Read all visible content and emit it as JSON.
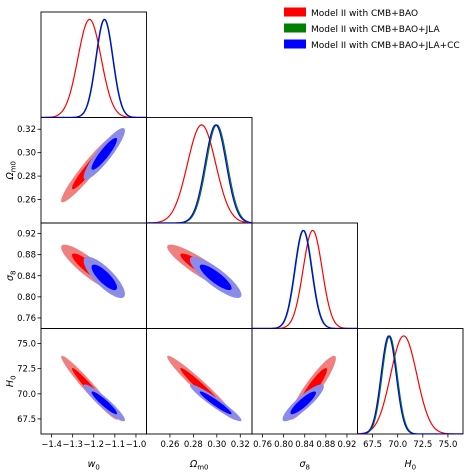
{
  "chart_data": {
    "type": "corner",
    "legend_placement": "top-right",
    "legend": [
      {
        "label": "Model II with CMB+BAO",
        "color": "#ff0000"
      },
      {
        "label": "Model II with CMB+BAO+JLA",
        "color": "#008000"
      },
      {
        "label": "Model II with CMB+BAO+JLA+CC",
        "color": "#0000ff"
      }
    ],
    "parameters": [
      {
        "key": "w0",
        "symbol": "w",
        "subscript": "0",
        "range": [
          -1.45,
          -0.95
        ],
        "ticks": [
          -1.4,
          -1.3,
          -1.2,
          -1.1,
          -1.0
        ],
        "tick_labels": [
          "−1.4",
          "−1.3",
          "−1.2",
          "−1.1",
          "−1.0"
        ]
      },
      {
        "key": "Om0",
        "symbol": "Ω",
        "subscript": "m0",
        "range": [
          0.24,
          0.33
        ],
        "ticks": [
          0.26,
          0.28,
          0.3,
          0.32
        ],
        "tick_labels": [
          "0.26",
          "0.28",
          "0.30",
          "0.32"
        ]
      },
      {
        "key": "s8",
        "symbol": "σ",
        "subscript": "8",
        "range": [
          0.74,
          0.94
        ],
        "ticks": [
          0.76,
          0.8,
          0.84,
          0.88,
          0.92
        ],
        "tick_labels": [
          "0.76",
          "0.80",
          "0.84",
          "0.88",
          "0.92"
        ]
      },
      {
        "key": "H0",
        "symbol": "H",
        "subscript": "0",
        "range": [
          66.0,
          76.5
        ],
        "ticks": [
          67.5,
          70.0,
          72.5,
          75.0
        ],
        "tick_labels": [
          "67.5",
          "70.0",
          "72.5",
          "75.0"
        ]
      }
    ],
    "series": [
      {
        "name": "Model II with CMB+BAO",
        "color": "#ff0000",
        "fill_outer": "#f08080",
        "fill_inner": "#ff0000",
        "show_contours": true,
        "mean": [
          -1.22,
          0.287,
          0.855,
          70.6
        ],
        "sigma": [
          0.055,
          0.012,
          0.018,
          1.3
        ],
        "corr": [
          [
            1,
            0.95,
            -0.88,
            -0.97
          ],
          [
            0.95,
            1,
            -0.9,
            -0.97
          ],
          [
            -0.88,
            -0.9,
            1,
            0.92
          ],
          [
            -0.97,
            -0.97,
            0.92,
            1
          ]
        ]
      },
      {
        "name": "Model II with CMB+BAO+JLA",
        "color": "#008000",
        "fill_outer": "#9ecf9e",
        "fill_inner": "#008000",
        "show_contours": false,
        "mean": [
          -1.148,
          0.3,
          0.838,
          69.2
        ],
        "sigma": [
          0.04,
          0.009,
          0.016,
          0.75
        ],
        "corr": [
          [
            1,
            0.9,
            -0.8,
            -0.93
          ],
          [
            0.9,
            1,
            -0.85,
            -0.95
          ],
          [
            -0.8,
            -0.85,
            1,
            0.88
          ],
          [
            -0.93,
            -0.95,
            0.88,
            1
          ]
        ]
      },
      {
        "name": "Model II with CMB+BAO+JLA+CC",
        "color": "#0000ff",
        "fill_outer": "#8c8ce8",
        "fill_inner": "#0000ff",
        "show_contours": true,
        "mean": [
          -1.15,
          0.299,
          0.837,
          69.1
        ],
        "sigma": [
          0.04,
          0.009,
          0.016,
          0.75
        ],
        "corr": [
          [
            1,
            0.9,
            -0.8,
            -0.93
          ],
          [
            0.9,
            1,
            -0.85,
            -0.95
          ],
          [
            -0.8,
            -0.85,
            1,
            0.88
          ],
          [
            -0.93,
            -0.95,
            0.88,
            1
          ]
        ]
      }
    ]
  }
}
